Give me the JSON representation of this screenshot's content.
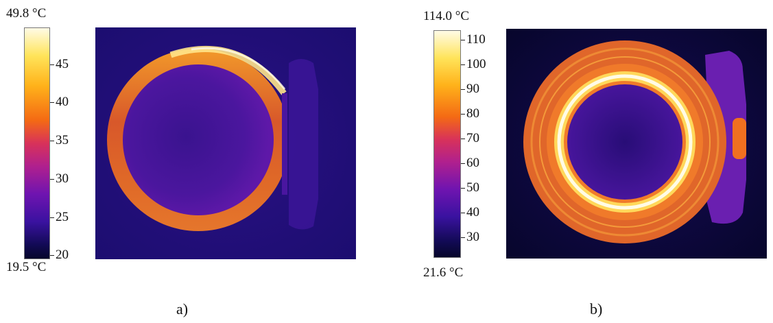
{
  "panel_a": {
    "caption": "a)",
    "scale": {
      "max_label": "49.8 °C",
      "min_label": "19.5 °C",
      "ticks": [
        "45",
        "40",
        "35",
        "30",
        "25",
        "20"
      ],
      "tick_values": [
        45,
        40,
        35,
        30,
        25,
        20
      ],
      "range": [
        19.5,
        49.8
      ]
    }
  },
  "panel_b": {
    "caption": "b)",
    "scale": {
      "max_label": "114.0 °C",
      "min_label": "21.6 °C",
      "ticks": [
        "110",
        "100",
        "90",
        "80",
        "70",
        "60",
        "50",
        "40",
        "30"
      ],
      "tick_values": [
        110,
        100,
        90,
        80,
        70,
        60,
        50,
        40,
        30
      ],
      "range": [
        21.6,
        114.0
      ]
    }
  },
  "colors": {
    "background_dark": "#1a0f6e",
    "cold": "#06062a",
    "mid_purple": "#5a11a8",
    "magenta": "#c4257a",
    "orange": "#f06a12",
    "yellow": "#ffd64a",
    "white_hot": "#fffbe6"
  }
}
